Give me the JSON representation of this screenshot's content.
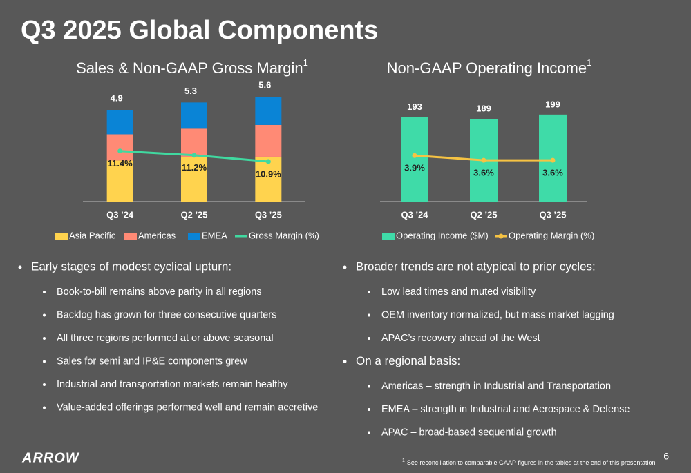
{
  "title": "Q3 2025 Global Components",
  "chart_data": [
    {
      "type": "bar",
      "stacked": true,
      "title": "Sales & Non-GAAP Gross Margin",
      "title_note": "1",
      "categories": [
        "Q3 ’24",
        "Q2 ’25",
        "Q3 ’25"
      ],
      "totals": [
        4.9,
        5.3,
        5.6
      ],
      "ylim": [
        0,
        6.2
      ],
      "y2lim": [
        9,
        14.5
      ],
      "series": [
        {
          "name": "Asia Pacific",
          "type": "bar",
          "color": "#ffd34e",
          "values": [
            2.2,
            2.4,
            2.4
          ]
        },
        {
          "name": "Americas",
          "type": "bar",
          "color": "#ff8a75",
          "values": [
            1.4,
            1.5,
            1.7
          ]
        },
        {
          "name": "EMEA",
          "type": "bar",
          "color": "#0a84d6",
          "values": [
            1.3,
            1.4,
            1.5
          ]
        },
        {
          "name": "Gross Margin (%)",
          "type": "line",
          "axis": "y2",
          "color": "#40d9a0",
          "values": [
            11.4,
            11.2,
            10.9
          ],
          "value_labels": [
            "11.4%",
            "11.2%",
            "10.9%"
          ]
        }
      ]
    },
    {
      "type": "bar",
      "stacked": false,
      "title": "Non-GAAP Operating Income",
      "title_note": "1",
      "categories": [
        "Q3 ’24",
        "Q2 ’25",
        "Q3 ’25"
      ],
      "ylim": [
        0,
        265
      ],
      "y2lim": [
        1,
        8.3
      ],
      "series": [
        {
          "name": "Operating Income ($M)",
          "type": "bar",
          "color": "#3fdba8",
          "values": [
            193,
            189,
            199
          ]
        },
        {
          "name": "Operating Margin (%)",
          "type": "line",
          "axis": "y2",
          "color": "#f6c343",
          "values": [
            3.9,
            3.6,
            3.6
          ],
          "value_labels": [
            "3.9%",
            "3.6%",
            "3.6%"
          ]
        }
      ]
    }
  ],
  "bullets": [
    [
      {
        "text": "Early stages of modest cyclical upturn:",
        "items": [
          "Book-to-bill  remains above parity in all regions",
          "Backlog has grown for three consecutive quarters",
          "All three regions performed at or above seasonal",
          "Sales for semi and IP&E components grew",
          "Industrial and transportation markets remain healthy",
          "Value-added offerings performed well and remain accretive"
        ]
      }
    ],
    [
      {
        "text": "Broader trends are not atypical to prior cycles:",
        "items": [
          "Low lead times and muted visibility",
          "OEM inventory normalized, but mass market lagging",
          "APAC’s recovery ahead of the West"
        ]
      },
      {
        "text": "On a regional basis:",
        "items": [
          "Americas – strength in Industrial and Transportation",
          "EMEA – strength in Industrial and Aerospace & Defense",
          "APAC – broad-based sequential growth"
        ]
      }
    ]
  ],
  "logo": "ARROW",
  "footnote": {
    "mark": "1",
    "text": "See reconciliation to comparable GAAP figures in the tables at the end of this presentation"
  },
  "page_number": "6"
}
